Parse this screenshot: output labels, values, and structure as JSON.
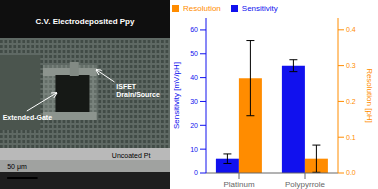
{
  "chart_data": {
    "type": "bar",
    "categories": [
      "Platinum",
      "Polypyrrole"
    ],
    "series": [
      {
        "name": "Sensitivity",
        "color": "#1111EE",
        "values": [
          6.0,
          45.0
        ],
        "errors": [
          2.0,
          2.5
        ]
      },
      {
        "name": "Resolution",
        "color": "#FF8C00",
        "values": [
          0.265,
          0.04
        ],
        "errors": [
          0.105,
          0.038
        ],
        "axis": "y2"
      }
    ],
    "y_label": "Sensitivity [mV/pH]",
    "y2_label": "Resolution [pH]",
    "ylim": [
      0,
      65
    ],
    "yticks": [
      0,
      10,
      20,
      30,
      40,
      50,
      60
    ],
    "y2lim": [
      0,
      0.433
    ],
    "y2ticks": [
      {
        "value": 0.0,
        "label": "0.0"
      },
      {
        "value": 0.1,
        "label": "0.1"
      },
      {
        "value": 0.2,
        "label": "0.2"
      },
      {
        "value": 0.3,
        "label": "0.3"
      },
      {
        "value": 0.4,
        "label": "0.4"
      }
    ],
    "legend": "upper left",
    "annotations": [
      "C.V. Electrodeposited Ppy",
      "ISFET\nDrain/Source",
      "Extended-Gate",
      "50 μm",
      "Uncoated Pt"
    ]
  }
}
